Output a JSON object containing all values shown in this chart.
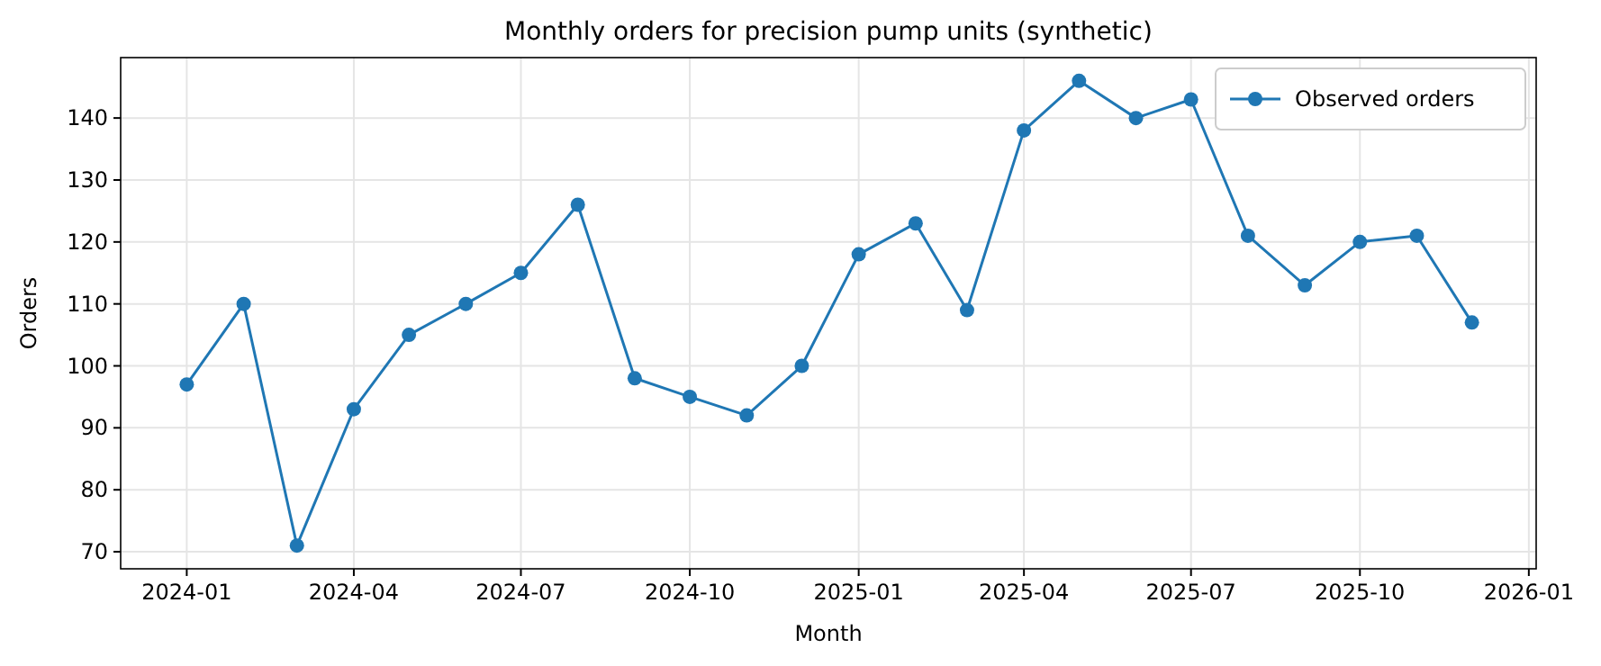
{
  "chart_data": {
    "type": "line",
    "title": "Monthly orders for precision pump units (synthetic)",
    "xlabel": "Month",
    "ylabel": "Orders",
    "x": [
      "2024-01",
      "2024-02",
      "2024-03",
      "2024-04",
      "2024-05",
      "2024-06",
      "2024-07",
      "2024-08",
      "2024-09",
      "2024-10",
      "2024-11",
      "2024-12",
      "2025-01",
      "2025-02",
      "2025-03",
      "2025-04",
      "2025-05",
      "2025-06",
      "2025-07",
      "2025-08",
      "2025-09",
      "2025-10",
      "2025-11",
      "2025-12"
    ],
    "series": [
      {
        "name": "Observed orders",
        "color": "#1f77b4",
        "values": [
          97,
          110,
          71,
          93,
          105,
          110,
          115,
          126,
          98,
          95,
          92,
          100,
          118,
          123,
          109,
          138,
          146,
          140,
          143,
          121,
          113,
          120,
          121,
          107
        ]
      }
    ],
    "xlim": [
      "2023-11-26",
      "2026-01-05"
    ],
    "xticks": [
      "2024-01",
      "2024-04",
      "2024-07",
      "2024-10",
      "2025-01",
      "2025-04",
      "2025-07",
      "2025-10",
      "2026-01"
    ],
    "ylim": [
      67.25,
      149.75
    ],
    "yticks": [
      70,
      80,
      90,
      100,
      110,
      120,
      130,
      140
    ],
    "grid": true,
    "legend": "top right",
    "marker": "circle",
    "line_style": "solid"
  }
}
